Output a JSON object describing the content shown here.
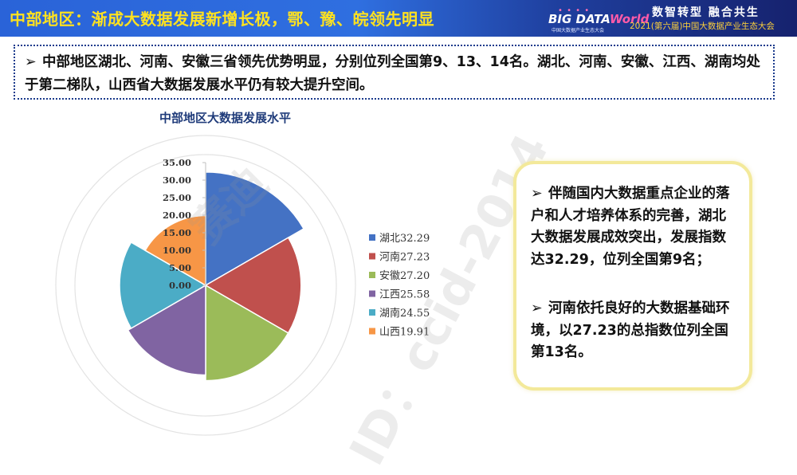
{
  "header": {
    "title": "中部地区：渐成大数据发展新增长极，鄂、豫、皖领先明显",
    "logo_text": "BIG DATA",
    "logo_text_world": "World",
    "logo_subtext": "中国大数据产业生态大会",
    "slogan": "数智转型 融合共生",
    "conference": "2021(第六届)中国大数据产业生态大会"
  },
  "summary": {
    "bullet": "➢",
    "text": "中部地区湖北、河南、安徽三省领先优势明显，分别位列全国第9、13、14名。湖北、河南、安徽、江西、湖南均处于第二梯队，山西省大数据发展水平仍有较大提升空间。"
  },
  "callout": {
    "bullet": "➢",
    "point1": "伴随国内大数据重点企业的落户和人才培养体系的完善，湖北大数据发展成效突出，发展指数达32.29，位列全国第9名；",
    "point2": "河南依托良好的大数据基础环境，以27.23的总指数位列全国第13名。"
  },
  "watermark": {
    "text1": "ID：ccid-2014",
    "text2": "赛迪"
  },
  "chart_data": {
    "type": "pie",
    "title": "中部地区大数据发展水平",
    "subtype": "polar-area",
    "categories": [
      "湖北",
      "河南",
      "安徽",
      "江西",
      "湖南",
      "山西"
    ],
    "values": [
      32.29,
      27.23,
      27.2,
      25.58,
      24.55,
      19.91
    ],
    "legend_labels": [
      "湖北32.29",
      "河南27.23",
      "安徽27.20",
      "江西25.58",
      "湖南24.55",
      "山西19.91"
    ],
    "colors": [
      "#4472c4",
      "#c0504d",
      "#9bbb59",
      "#8064a2",
      "#4bacc6",
      "#f79646"
    ],
    "radial_ticks": [
      "35.00",
      "30.00",
      "25.00",
      "20.00",
      "15.00",
      "10.00",
      "5.00",
      "0.00"
    ],
    "rmax": 35,
    "legend_position": "right"
  }
}
